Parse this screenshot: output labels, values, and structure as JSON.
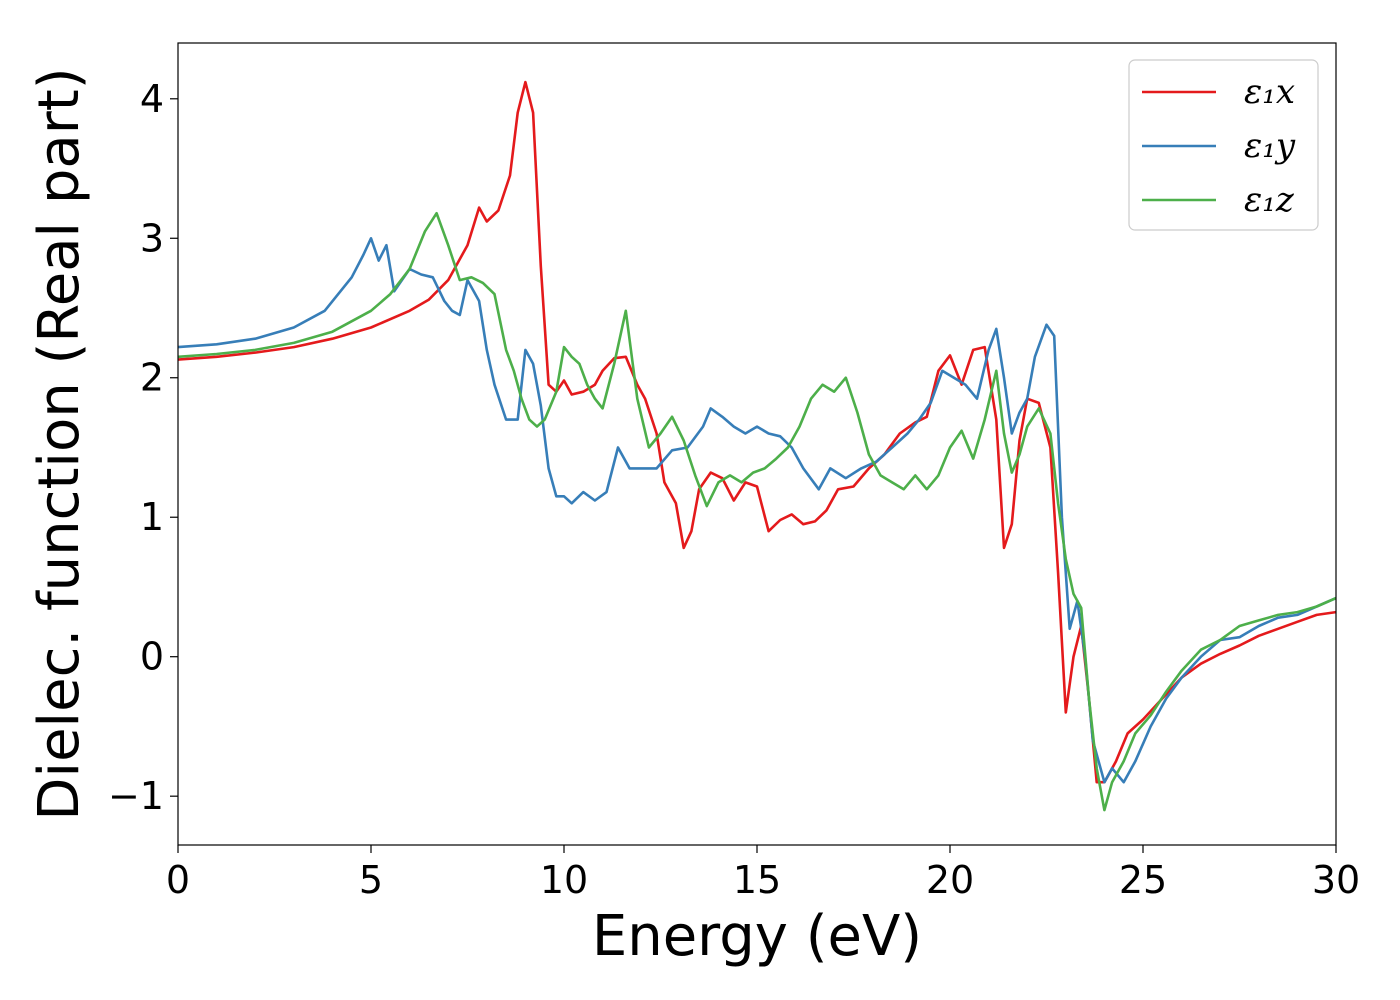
{
  "chart_data": {
    "type": "line",
    "title": "",
    "xlabel": "Energy (eV)",
    "ylabel": "Dielec. function (Real part)",
    "xlim": [
      0,
      30
    ],
    "ylim": [
      -1.35,
      4.4
    ],
    "xticks": [
      0,
      5,
      10,
      15,
      20,
      25,
      30
    ],
    "yticks": [
      -1,
      0,
      1,
      2,
      3,
      4
    ],
    "xtick_labels": [
      "0",
      "5",
      "10",
      "15",
      "20",
      "25",
      "30"
    ],
    "ytick_labels": [
      "−1",
      "0",
      "1",
      "2",
      "3",
      "4"
    ],
    "grid": false,
    "legend_position": "top-right",
    "series": [
      {
        "name": "ε₁x",
        "color": "#e41a1c",
        "x": [
          0,
          1,
          2,
          3,
          4,
          5,
          6,
          6.5,
          7,
          7.5,
          7.8,
          8,
          8.3,
          8.6,
          8.8,
          9.0,
          9.2,
          9.4,
          9.6,
          9.8,
          10.0,
          10.2,
          10.5,
          10.8,
          11.0,
          11.3,
          11.6,
          11.9,
          12.1,
          12.4,
          12.6,
          12.9,
          13.1,
          13.3,
          13.5,
          13.8,
          14.1,
          14.4,
          14.7,
          15.0,
          15.3,
          15.6,
          15.9,
          16.2,
          16.5,
          16.8,
          17.1,
          17.5,
          17.9,
          18.3,
          18.7,
          19.1,
          19.4,
          19.7,
          20.0,
          20.3,
          20.6,
          20.9,
          21.2,
          21.4,
          21.6,
          21.8,
          22.0,
          22.3,
          22.6,
          22.8,
          23.0,
          23.2,
          23.4,
          23.6,
          23.8,
          24.0,
          24.3,
          24.6,
          25.0,
          25.5,
          26.0,
          26.5,
          27.0,
          27.5,
          28.0,
          28.5,
          29.0,
          29.5,
          30.0
        ],
        "y": [
          2.13,
          2.15,
          2.18,
          2.22,
          2.28,
          2.36,
          2.48,
          2.56,
          2.7,
          2.95,
          3.22,
          3.12,
          3.2,
          3.45,
          3.9,
          4.12,
          3.9,
          2.8,
          1.95,
          1.9,
          1.98,
          1.88,
          1.9,
          1.95,
          2.05,
          2.14,
          2.15,
          1.95,
          1.85,
          1.6,
          1.25,
          1.1,
          0.78,
          0.9,
          1.2,
          1.32,
          1.28,
          1.12,
          1.25,
          1.22,
          0.9,
          0.98,
          1.02,
          0.95,
          0.97,
          1.05,
          1.2,
          1.22,
          1.35,
          1.45,
          1.6,
          1.68,
          1.72,
          2.05,
          2.16,
          1.95,
          2.2,
          2.22,
          1.7,
          0.78,
          0.95,
          1.55,
          1.85,
          1.82,
          1.5,
          0.6,
          -0.4,
          0.0,
          0.22,
          -0.3,
          -0.9,
          -0.9,
          -0.75,
          -0.55,
          -0.45,
          -0.3,
          -0.15,
          -0.05,
          0.02,
          0.08,
          0.15,
          0.2,
          0.25,
          0.3,
          0.32
        ]
      },
      {
        "name": "ε₁y",
        "color": "#377eb8",
        "x": [
          0,
          1,
          2,
          3,
          3.8,
          4.5,
          4.8,
          5.0,
          5.2,
          5.4,
          5.6,
          5.8,
          6.0,
          6.3,
          6.6,
          6.9,
          7.1,
          7.3,
          7.5,
          7.8,
          8.0,
          8.2,
          8.5,
          8.8,
          9.0,
          9.2,
          9.4,
          9.6,
          9.8,
          10.0,
          10.2,
          10.5,
          10.8,
          11.1,
          11.4,
          11.7,
          12.0,
          12.4,
          12.8,
          13.2,
          13.6,
          13.8,
          14.1,
          14.4,
          14.7,
          15.0,
          15.3,
          15.6,
          15.9,
          16.2,
          16.6,
          16.9,
          17.3,
          17.7,
          18.1,
          18.5,
          18.9,
          19.2,
          19.5,
          19.8,
          20.1,
          20.4,
          20.7,
          21.0,
          21.2,
          21.4,
          21.6,
          21.8,
          22.0,
          22.2,
          22.5,
          22.7,
          22.9,
          23.1,
          23.3,
          23.5,
          23.7,
          24.0,
          24.2,
          24.5,
          24.8,
          25.2,
          25.6,
          26.0,
          26.5,
          27.0,
          27.5,
          28.0,
          28.5,
          29.0,
          29.5,
          30.0
        ],
        "y": [
          2.22,
          2.24,
          2.28,
          2.36,
          2.48,
          2.72,
          2.88,
          3.0,
          2.84,
          2.95,
          2.62,
          2.7,
          2.78,
          2.74,
          2.72,
          2.55,
          2.48,
          2.45,
          2.7,
          2.55,
          2.2,
          1.95,
          1.7,
          1.7,
          2.2,
          2.1,
          1.8,
          1.35,
          1.15,
          1.15,
          1.1,
          1.18,
          1.12,
          1.18,
          1.5,
          1.35,
          1.35,
          1.35,
          1.48,
          1.5,
          1.65,
          1.78,
          1.72,
          1.65,
          1.6,
          1.65,
          1.6,
          1.58,
          1.5,
          1.35,
          1.2,
          1.35,
          1.28,
          1.35,
          1.4,
          1.5,
          1.6,
          1.7,
          1.82,
          2.05,
          2.0,
          1.95,
          1.85,
          2.2,
          2.35,
          2.0,
          1.6,
          1.75,
          1.85,
          2.15,
          2.38,
          2.3,
          1.0,
          0.2,
          0.4,
          0.0,
          -0.6,
          -0.9,
          -0.8,
          -0.9,
          -0.75,
          -0.5,
          -0.3,
          -0.15,
          -0.0,
          0.12,
          0.14,
          0.22,
          0.28,
          0.3,
          0.36,
          0.42
        ]
      },
      {
        "name": "ε₁z",
        "color": "#4daf4a",
        "x": [
          0,
          1,
          2,
          3,
          4,
          5,
          5.5,
          6.0,
          6.4,
          6.7,
          7.0,
          7.3,
          7.6,
          7.9,
          8.2,
          8.5,
          8.7,
          8.9,
          9.1,
          9.3,
          9.5,
          9.8,
          10.0,
          10.2,
          10.4,
          10.6,
          10.8,
          11.0,
          11.3,
          11.6,
          11.9,
          12.2,
          12.5,
          12.8,
          13.1,
          13.4,
          13.7,
          14.0,
          14.3,
          14.6,
          14.9,
          15.2,
          15.5,
          15.8,
          16.1,
          16.4,
          16.7,
          17.0,
          17.3,
          17.6,
          17.9,
          18.2,
          18.5,
          18.8,
          19.1,
          19.4,
          19.7,
          20.0,
          20.3,
          20.6,
          20.9,
          21.2,
          21.4,
          21.6,
          21.8,
          22.0,
          22.3,
          22.6,
          22.8,
          23.0,
          23.2,
          23.4,
          23.6,
          23.8,
          24.0,
          24.2,
          24.5,
          24.8,
          25.2,
          25.6,
          26.0,
          26.5,
          27.0,
          27.5,
          28.0,
          28.5,
          29.0,
          29.5,
          30.0
        ],
        "y": [
          2.15,
          2.17,
          2.2,
          2.25,
          2.33,
          2.48,
          2.6,
          2.78,
          3.05,
          3.18,
          2.95,
          2.7,
          2.72,
          2.68,
          2.6,
          2.2,
          2.05,
          1.85,
          1.7,
          1.65,
          1.7,
          1.9,
          2.22,
          2.15,
          2.1,
          1.95,
          1.85,
          1.78,
          2.1,
          2.48,
          1.85,
          1.5,
          1.6,
          1.72,
          1.55,
          1.3,
          1.08,
          1.25,
          1.3,
          1.25,
          1.32,
          1.35,
          1.42,
          1.5,
          1.65,
          1.85,
          1.95,
          1.9,
          2.0,
          1.75,
          1.45,
          1.3,
          1.25,
          1.2,
          1.3,
          1.2,
          1.3,
          1.5,
          1.62,
          1.42,
          1.7,
          2.05,
          1.6,
          1.32,
          1.45,
          1.65,
          1.78,
          1.6,
          1.1,
          0.7,
          0.45,
          0.35,
          -0.3,
          -0.8,
          -1.1,
          -0.9,
          -0.75,
          -0.55,
          -0.42,
          -0.25,
          -0.1,
          0.05,
          0.12,
          0.22,
          0.26,
          0.3,
          0.32,
          0.36,
          0.42
        ]
      }
    ]
  }
}
